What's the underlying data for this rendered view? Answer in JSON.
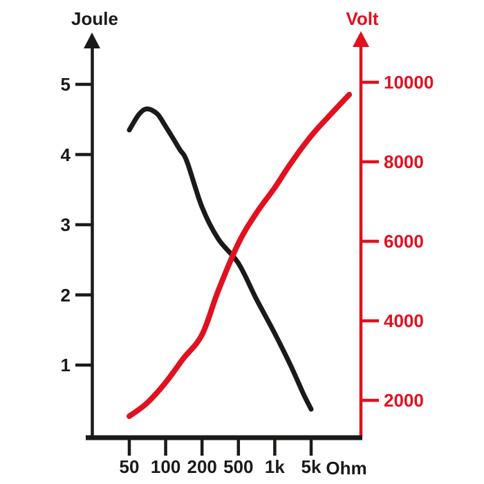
{
  "colors": {
    "orange": "#e8612e",
    "red": "#e1111f",
    "black": "#1a1a18",
    "background": "#ffffff"
  },
  "chart_data": {
    "type": "line",
    "title": "",
    "background": "orange-to-white diagonal gradient",
    "grid": false,
    "legend": "none",
    "x_axis": {
      "unit": "Ohm",
      "scale": "logarithmic-style, equally spaced ticks",
      "ticks": [
        50,
        100,
        200,
        500,
        1000,
        5000
      ],
      "tick_labels": [
        "50",
        "100",
        "200",
        "500",
        "1k",
        "5k"
      ]
    },
    "y_left": {
      "label": "Joule",
      "color": "#1a1a18",
      "ticks": [
        1,
        2,
        3,
        4,
        5
      ],
      "tick_labels": [
        "1",
        "2",
        "3",
        "4",
        "5"
      ],
      "range": [
        0,
        5.6
      ]
    },
    "y_right": {
      "label": "Volt",
      "color": "#e1111f",
      "ticks": [
        2000,
        4000,
        6000,
        8000,
        10000
      ],
      "tick_labels": [
        "2000",
        "4000",
        "6000",
        "8000",
        "10000"
      ],
      "range": [
        1100,
        10900
      ]
    },
    "series": [
      {
        "name": "Joule",
        "axis": "left",
        "color": "#1a1a18",
        "stroke_width": 7,
        "points": [
          [
            50,
            4.35
          ],
          [
            60,
            4.57
          ],
          [
            70,
            4.65
          ],
          [
            85,
            4.58
          ],
          [
            100,
            4.4
          ],
          [
            130,
            4.08
          ],
          [
            150,
            3.9
          ],
          [
            200,
            3.25
          ],
          [
            300,
            2.8
          ],
          [
            500,
            2.45
          ],
          [
            700,
            1.95
          ],
          [
            1000,
            1.45
          ],
          [
            2000,
            1.0
          ],
          [
            3500,
            0.6
          ],
          [
            5000,
            0.37
          ]
        ]
      },
      {
        "name": "Volt",
        "axis": "right",
        "color": "#e1111f",
        "stroke_width": 8,
        "points": [
          [
            50,
            1600
          ],
          [
            70,
            1930
          ],
          [
            100,
            2450
          ],
          [
            140,
            3050
          ],
          [
            200,
            3650
          ],
          [
            300,
            4750
          ],
          [
            500,
            5950
          ],
          [
            700,
            6700
          ],
          [
            1000,
            7350
          ],
          [
            2000,
            7950
          ],
          [
            5000,
            8650
          ],
          [
            12000,
            9200
          ],
          [
            27000,
            9690
          ]
        ]
      }
    ]
  }
}
